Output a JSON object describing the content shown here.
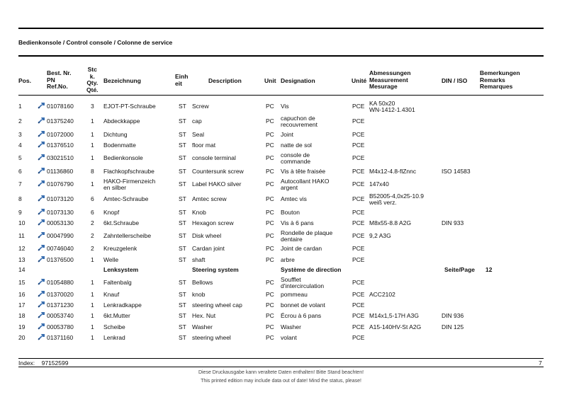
{
  "document": {
    "title": "Bedienkonsole / Control console / Colonne de service",
    "headers": {
      "pos": "Pos.",
      "pn": [
        "Best. Nr.",
        "PN",
        "Ref.No."
      ],
      "qty": [
        "Stc",
        "k.",
        "Qty.",
        "Qté."
      ],
      "bezeichnung": "Bezeichnung",
      "einheit": [
        "Einh",
        "eit"
      ],
      "description": "Description",
      "unit": "Unit",
      "designation": "Designation",
      "unite": "Unité",
      "abmessungen": [
        "Abmessungen",
        "Measurement",
        "Mesurage"
      ],
      "din": "DIN / ISO",
      "bemerkungen": [
        "Bemerkungen",
        "Remarks",
        "Remarques"
      ]
    },
    "rows": [
      {
        "pos": "1",
        "pn": "01078160",
        "qty": "3",
        "bez": "EJOT-PT-Schraube",
        "einh": "ST",
        "desc": "Screw",
        "unit": "PC",
        "des": [
          "Vis"
        ],
        "unite": "PCE",
        "abm": [
          "KA 50x20",
          "WN-1412-1.4301"
        ],
        "din": ""
      },
      {
        "pos": "2",
        "pn": "01375240",
        "qty": "1",
        "bez": "Abdeckkappe",
        "einh": "ST",
        "desc": "cap",
        "unit": "PC",
        "des": [
          "capuchon de",
          "recouvrement"
        ],
        "unite": "PCE",
        "abm": [],
        "din": ""
      },
      {
        "pos": "3",
        "pn": "01072000",
        "qty": "1",
        "bez": "Dichtung",
        "einh": "ST",
        "desc": "Seal",
        "unit": "PC",
        "des": [
          "Joint"
        ],
        "unite": "PCE",
        "abm": [],
        "din": ""
      },
      {
        "pos": "4",
        "pn": "01376510",
        "qty": "1",
        "bez": "Bodenmatte",
        "einh": "ST",
        "desc": "floor mat",
        "unit": "PC",
        "des": [
          "natte de sol"
        ],
        "unite": "PCE",
        "abm": [],
        "din": ""
      },
      {
        "pos": "5",
        "pn": "03021510",
        "qty": "1",
        "bez": "Bedienkonsole",
        "einh": "ST",
        "desc": "console terminal",
        "unit": "PC",
        "des": [
          "console de",
          "commande"
        ],
        "unite": "PCE",
        "abm": [],
        "din": ""
      },
      {
        "pos": "6",
        "pn": "01136860",
        "qty": "8",
        "bez": "Flachkopfschraube",
        "einh": "ST",
        "desc": "Countersunk screw",
        "unit": "PC",
        "des": [
          "Vis à tête fraisée"
        ],
        "unite": "PCE",
        "abm": [
          "M4x12-4.8-flZnnc"
        ],
        "din": "ISO 14583"
      },
      {
        "pos": "7",
        "pn": "01076790",
        "qty": "1",
        "bez": "HAKO-Firmenzeich|en silber",
        "einh": "ST",
        "desc": "Label HAKO silver",
        "unit": "PC",
        "des": [
          "Autocollant HAKO",
          "argent"
        ],
        "unite": "PCE",
        "abm": [
          "147x40"
        ],
        "din": ""
      },
      {
        "pos": "8",
        "pn": "01073120",
        "qty": "6",
        "bez": "Amtec-Schraube",
        "einh": "ST",
        "desc": "Amtec screw",
        "unit": "PC",
        "des": [
          "Amtec vis"
        ],
        "unite": "PCE",
        "abm": [
          "B52005-4,0x25-10.9",
          "weiß verz."
        ],
        "din": ""
      },
      {
        "pos": "9",
        "pn": "01073130",
        "qty": "6",
        "bez": "Knopf",
        "einh": "ST",
        "desc": "Knob",
        "unit": "PC",
        "des": [
          "Bouton"
        ],
        "unite": "PCE",
        "abm": [],
        "din": ""
      },
      {
        "pos": "10",
        "pn": "00053130",
        "qty": "2",
        "bez": "6kt.Schraube",
        "einh": "ST",
        "desc": "Hexagon screw",
        "unit": "PC",
        "des": [
          "Vis à 6 pans"
        ],
        "unite": "PCE",
        "abm": [
          "M8x55-8.8 A2G"
        ],
        "din": "DIN 933"
      },
      {
        "pos": "11",
        "pn": "00047990",
        "qty": "2",
        "bez": "Zahntellerscheibe",
        "einh": "ST",
        "desc": "Disk wheel",
        "unit": "PC",
        "des": [
          "Rondelle de plaque",
          "dentaire"
        ],
        "unite": "PCE",
        "abm": [
          "9,2 A3G"
        ],
        "din": ""
      },
      {
        "pos": "12",
        "pn": "00746040",
        "qty": "2",
        "bez": "Kreuzgelenk",
        "einh": "ST",
        "desc": "Cardan joint",
        "unit": "PC",
        "des": [
          "Joint de cardan"
        ],
        "unite": "PCE",
        "abm": [],
        "din": ""
      },
      {
        "pos": "13",
        "pn": "01376500",
        "qty": "1",
        "bez": "Welle",
        "einh": "ST",
        "desc": "shaft",
        "unit": "PC",
        "des": [
          "arbre"
        ],
        "unite": "PCE",
        "abm": [],
        "din": ""
      },
      {
        "pos": "14",
        "section": true,
        "bez": "Lenksystem",
        "desc": "Steering system",
        "des": [
          "Système de direction"
        ],
        "seite_label": "Seite/Page",
        "seite_value": "12"
      },
      {
        "pos": "15",
        "pn": "01054880",
        "qty": "1",
        "bez": "Faltenbalg",
        "einh": "ST",
        "desc": "Bellows",
        "unit": "PC",
        "des": [
          "Soufflet",
          "d'intercirculation"
        ],
        "unite": "PCE",
        "abm": [],
        "din": ""
      },
      {
        "pos": "16",
        "pn": "01370020",
        "qty": "1",
        "bez": "Knauf",
        "einh": "ST",
        "desc": "knob",
        "unit": "PC",
        "des": [
          "pommeau"
        ],
        "unite": "PCE",
        "abm": [
          "ACC2102"
        ],
        "din": ""
      },
      {
        "pos": "17",
        "pn": "01371230",
        "qty": "1",
        "bez": "Lenkradkappe",
        "einh": "ST",
        "desc": "steering wheel cap",
        "unit": "PC",
        "des": [
          "bonnet de volant"
        ],
        "unite": "PCE",
        "abm": [],
        "din": ""
      },
      {
        "pos": "18",
        "pn": "00053740",
        "qty": "1",
        "bez": "6kt.Mutter",
        "einh": "ST",
        "desc": "Hex. Nut",
        "unit": "PC",
        "des": [
          "Écrou à 6 pans"
        ],
        "unite": "PCE",
        "abm": [
          "M14x1,5-17H A3G"
        ],
        "din": "DIN 936"
      },
      {
        "pos": "19",
        "pn": "00053780",
        "qty": "1",
        "bez": "Scheibe",
        "einh": "ST",
        "desc": "Washer",
        "unit": "PC",
        "des": [
          "Washer"
        ],
        "unite": "PCE",
        "abm": [
          "A15-140HV-St A2G"
        ],
        "din": "DIN 125"
      },
      {
        "pos": "20",
        "pn": "01371160",
        "qty": "1",
        "bez": "Lenkrad",
        "einh": "ST",
        "desc": "steering wheel",
        "unit": "PC",
        "des": [
          "volant"
        ],
        "unite": "PCE",
        "abm": [],
        "din": ""
      }
    ],
    "footer": {
      "index_label": "Index:",
      "index_value": "97152599",
      "page": "7",
      "notice_de": "Diese Druckausgabe kann veraltete Daten enthalten! Bitte Stand beachten!",
      "notice_en": "This printed edition may include data out of date! Mind the status, please!"
    }
  }
}
